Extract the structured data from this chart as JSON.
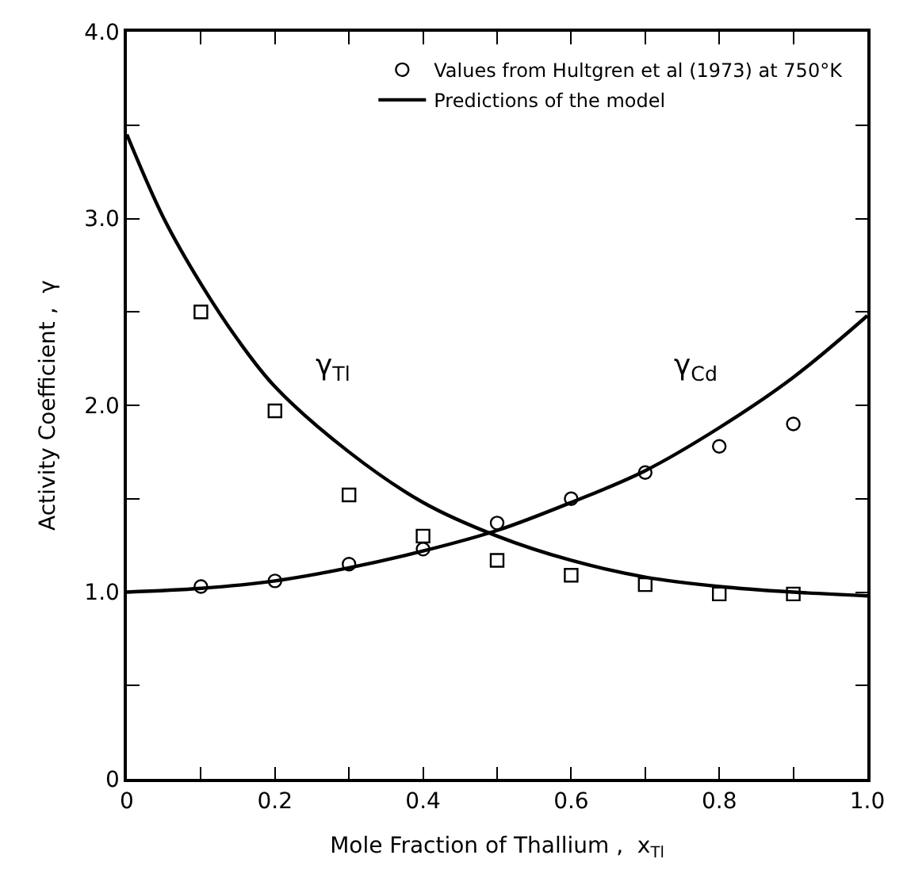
{
  "chart_data": {
    "type": "line",
    "xlabel": "Mole Fraction of Thallium ,  x$_{Tl}$",
    "ylabel": "Activity Coefficient ,  γ",
    "xlim": [
      0,
      1.0
    ],
    "ylim": [
      0,
      4.0
    ],
    "xticks": [
      0,
      {
        "value": 0.1,
        "label": null
      },
      {
        "value": 0.2,
        "label": "0.2"
      },
      {
        "value": 0.3,
        "label": null
      },
      {
        "value": 0.4,
        "label": "0.4"
      },
      {
        "value": 0.5,
        "label": null
      },
      {
        "value": 0.6,
        "label": "0.6"
      },
      {
        "value": 0.7,
        "label": null
      },
      {
        "value": 0.8,
        "label": "0.8"
      },
      {
        "value": 0.9,
        "label": null
      },
      {
        "value": 1.0,
        "label": "1.0"
      }
    ],
    "yticks": [
      0,
      {
        "value": 0.5,
        "label": null
      },
      {
        "value": 1.0,
        "label": "1.0"
      },
      {
        "value": 1.5,
        "label": null
      },
      {
        "value": 2.0,
        "label": "2.0"
      },
      {
        "value": 2.5,
        "label": null
      },
      {
        "value": 3.0,
        "label": "3.0"
      },
      {
        "value": 3.5,
        "label": null
      },
      {
        "value": 4.0,
        "label": "4.0"
      }
    ],
    "legend": "top right",
    "series": [
      {
        "name": "Values from Hultgren et al (1973) at 750°K",
        "type": "scatter",
        "marker": "circle",
        "color": "#000000",
        "x": [
          0.1,
          0.2,
          0.3,
          0.4,
          0.5,
          0.6,
          0.7,
          0.8,
          0.9
        ],
        "values": [
          1.03,
          1.06,
          1.15,
          1.23,
          1.37,
          1.5,
          1.64,
          1.78,
          1.9
        ]
      },
      {
        "type": "scatter",
        "marker": "square",
        "color": "#000000",
        "x": [
          0.1,
          0.2,
          0.3,
          0.4,
          0.5,
          0.6,
          0.7,
          0.8,
          0.9
        ],
        "values": [
          2.5,
          1.97,
          1.52,
          1.3,
          1.17,
          1.09,
          1.04,
          0.99,
          0.99
        ]
      },
      {
        "name": "Predictions of the model",
        "color": "#000000",
        "x": [
          0,
          0.05,
          0.1,
          0.15,
          0.2,
          0.3,
          0.4,
          0.5,
          0.6,
          0.7,
          0.8,
          0.9,
          1.0
        ],
        "values": [
          3.45,
          3.0,
          2.65,
          2.35,
          2.1,
          1.75,
          1.48,
          1.3,
          1.17,
          1.08,
          1.03,
          1.0,
          0.98
        ]
      },
      {
        "color": "#000000",
        "x": [
          0,
          0.1,
          0.2,
          0.3,
          0.4,
          0.5,
          0.6,
          0.7,
          0.8,
          0.9,
          1.0
        ],
        "values": [
          1.0,
          1.02,
          1.06,
          1.13,
          1.22,
          1.33,
          1.48,
          1.65,
          1.88,
          2.15,
          2.48
        ]
      }
    ],
    "annotations": [
      "γ$_{Tl}$",
      "γ$_{Cd}$"
    ]
  }
}
